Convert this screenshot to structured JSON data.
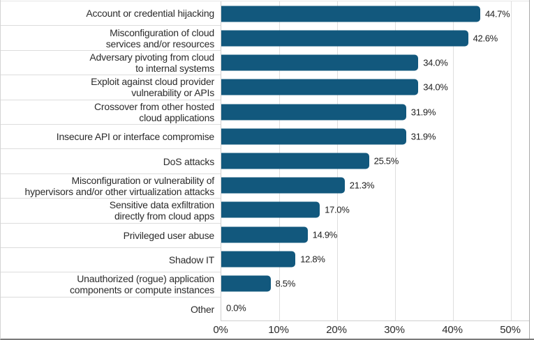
{
  "chart_data": {
    "type": "bar",
    "orientation": "horizontal",
    "title": "",
    "xlabel": "",
    "ylabel": "",
    "categories": [
      "Account or credential hijacking",
      "Misconfiguration of cloud\nservices and/or resources",
      "Adversary pivoting from cloud\nto internal systems",
      "Exploit against cloud provider\nvulnerability or APIs",
      "Crossover from other hosted\ncloud applications",
      "Insecure API or interface compromise",
      "DoS attacks",
      "Misconfiguration or vulnerability of\nhypervisors and/or other virtualization attacks",
      "Sensitive data exfiltration\ndirectly from cloud apps",
      "Privileged user abuse",
      "Shadow IT",
      "Unauthorized (rogue) application\ncomponents or compute instances",
      "Other"
    ],
    "values": [
      44.7,
      42.6,
      34.0,
      34.0,
      31.9,
      31.9,
      25.5,
      21.3,
      17.0,
      14.9,
      12.8,
      8.5,
      0.0
    ],
    "value_labels": [
      "44.7%",
      "42.6%",
      "34.0%",
      "34.0%",
      "31.9%",
      "31.9%",
      "25.5%",
      "21.3%",
      "17.0%",
      "14.9%",
      "12.8%",
      "8.5%",
      "0.0%"
    ],
    "x_ticks": [
      "0%",
      "10%",
      "20%",
      "30%",
      "40%",
      "50%"
    ],
    "x_tick_values": [
      0,
      10,
      20,
      30,
      40,
      50
    ],
    "xlim": [
      0,
      53.4
    ],
    "grid": "vertical",
    "legend": "none",
    "bar_color": "#12587d",
    "grid_color": "#dedede",
    "value_label_color": "#1d1d1d",
    "category_label_color": "#2b2b2b"
  }
}
